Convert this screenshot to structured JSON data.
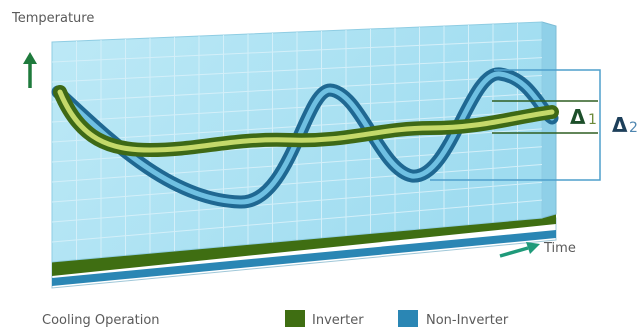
{
  "axes": {
    "y_label": "Temperature",
    "x_label": "Time"
  },
  "markers": {
    "delta1": {
      "symbol": "Δ",
      "index": "1"
    },
    "delta2": {
      "symbol": "Δ",
      "index": "2"
    }
  },
  "footer": {
    "caption": "Cooling Operation",
    "legend": [
      {
        "label": "Inverter",
        "color": "#3f6e12"
      },
      {
        "label": "Non-Inverter",
        "color": "#2a86b4"
      }
    ]
  },
  "colors": {
    "panel": "#aee4f4",
    "grid": "#d3eff9",
    "inverter": "#6f9a24",
    "non_inverter": "#2f88b4",
    "arrow": "#1f7a3c",
    "bracket": "#4e9fcc",
    "delta": "#1d4f2a"
  }
}
